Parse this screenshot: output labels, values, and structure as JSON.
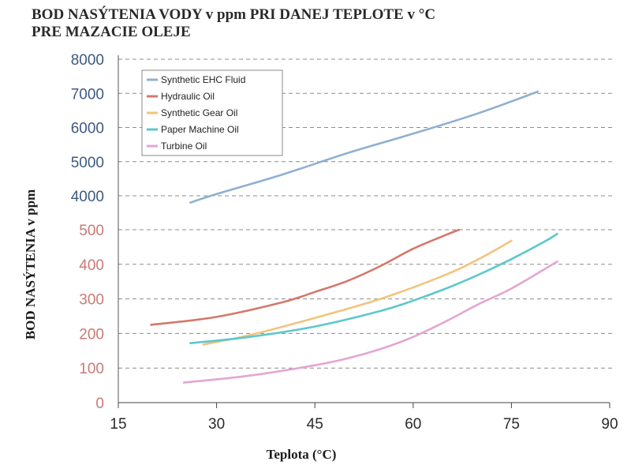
{
  "title_lines": [
    "BOD NASÝTENIA VODY v ppm PRI DANEJ TEPLOTE v °C",
    "PRE MAZACIE OLEJE"
  ],
  "chart_data": {
    "type": "line",
    "title": "BOD NASÝTENIA VODY v ppm PRI DANEJ TEPLOTE v °C PRE MAZACIE OLEJE",
    "xlabel": "Teplota (°C)",
    "ylabel": "BOD NASÝTENIA v ppm",
    "xlim": [
      15,
      90
    ],
    "x_ticks": [
      15,
      30,
      45,
      60,
      75,
      90
    ],
    "x_tick_labels": [
      "15",
      "30",
      "45",
      "60",
      "75",
      "90"
    ],
    "y_axis_broken": true,
    "y_upper_ticks": [
      4000,
      5000,
      6000,
      7000,
      8000
    ],
    "y_upper_tick_labels": [
      "4000",
      "5000",
      "6000",
      "7000",
      "8000"
    ],
    "y_lower_ticks": [
      0,
      100,
      200,
      300,
      400,
      500
    ],
    "y_lower_tick_labels": [
      "0",
      "100",
      "200",
      "300",
      "400",
      "500"
    ],
    "grid": true,
    "legend_position": "top-left",
    "series": [
      {
        "name": "Synthetic EHC Fluid",
        "color": "#8fb0d0",
        "x": [
          26,
          30,
          40,
          50,
          60,
          70,
          79
        ],
        "y": [
          3800,
          4050,
          4620,
          5250,
          5820,
          6420,
          7050
        ]
      },
      {
        "name": "Hydraulic Oil",
        "color": "#d4786c",
        "x": [
          20,
          30,
          40,
          45,
          50,
          55,
          60,
          65,
          67
        ],
        "y": [
          225,
          248,
          290,
          320,
          352,
          395,
          445,
          485,
          500
        ]
      },
      {
        "name": "Synthetic Gear Oil",
        "color": "#f2c47e",
        "x": [
          28,
          35,
          45,
          55,
          65,
          70,
          75
        ],
        "y": [
          168,
          195,
          245,
          300,
          370,
          415,
          468
        ]
      },
      {
        "name": "Paper Machine Oil",
        "color": "#5cc8cc",
        "x": [
          26,
          35,
          45,
          55,
          60,
          65,
          70,
          75,
          80,
          82
        ],
        "y": [
          172,
          190,
          220,
          265,
          295,
          330,
          370,
          415,
          465,
          488
        ]
      },
      {
        "name": "Turbine Oil",
        "color": "#e3a6d3",
        "x": [
          25,
          35,
          45,
          50,
          55,
          60,
          65,
          70,
          75,
          82
        ],
        "y": [
          58,
          78,
          108,
          128,
          155,
          190,
          235,
          285,
          330,
          408
        ]
      }
    ]
  }
}
